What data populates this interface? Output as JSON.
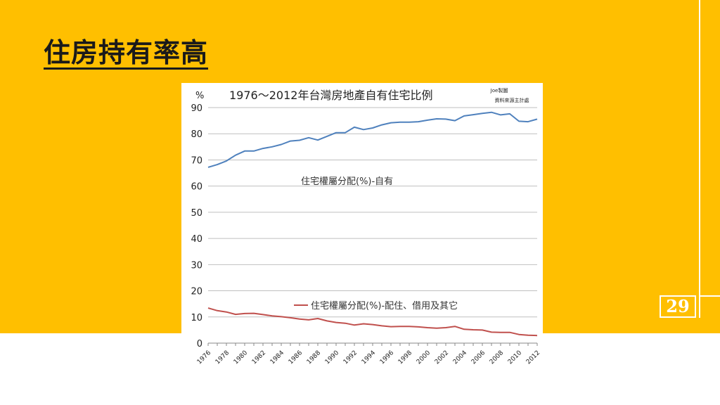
{
  "slide": {
    "title": "住房持有率高",
    "page_number": "29",
    "colors": {
      "background": "#FFBF00",
      "title": "#1a1a1a",
      "rule": "#ffffff"
    }
  },
  "chart_data": {
    "type": "line",
    "title": "1976～2012年台灣房地產自有住宅比例",
    "ylabel": "%",
    "xlabel": "",
    "credit": [
      "Joe製圖",
      "資料來源主計處"
    ],
    "ylim": [
      0,
      90
    ],
    "yticks": [
      0,
      10,
      20,
      30,
      40,
      50,
      60,
      70,
      80,
      90
    ],
    "xticks": [
      "1976",
      "1978",
      "1980",
      "1982",
      "1984",
      "1986",
      "1988",
      "1990",
      "1992",
      "1994",
      "1996",
      "1998",
      "2000",
      "2002",
      "2004",
      "2006",
      "2008",
      "2010",
      "2012"
    ],
    "grid": true,
    "x": [
      1976,
      1977,
      1978,
      1979,
      1980,
      1981,
      1982,
      1983,
      1984,
      1985,
      1986,
      1987,
      1988,
      1989,
      1990,
      1991,
      1992,
      1993,
      1994,
      1995,
      1996,
      1997,
      1998,
      1999,
      2000,
      2001,
      2002,
      2003,
      2004,
      2005,
      2006,
      2007,
      2008,
      2009,
      2010,
      2011,
      2012
    ],
    "series": [
      {
        "name": "住宅權屬分配(%)-自有",
        "color": "#4F81BD",
        "values": [
          67.2,
          68.2,
          69.6,
          71.8,
          73.4,
          73.4,
          74.4,
          75.0,
          75.9,
          77.2,
          77.5,
          78.5,
          77.6,
          79.0,
          80.4,
          80.4,
          82.5,
          81.6,
          82.2,
          83.4,
          84.2,
          84.4,
          84.4,
          84.6,
          85.2,
          85.7,
          85.6,
          85.0,
          86.8,
          87.3,
          87.8,
          88.2,
          87.2,
          87.6,
          84.8,
          84.6,
          85.6
        ]
      },
      {
        "name": "住宅權屬分配(%)-配住、借用及其它",
        "color": "#C0504D",
        "values": [
          13.4,
          12.4,
          11.9,
          11.0,
          11.3,
          11.4,
          10.9,
          10.4,
          10.1,
          9.7,
          9.2,
          8.9,
          9.4,
          8.5,
          7.9,
          7.6,
          6.9,
          7.4,
          7.1,
          6.6,
          6.3,
          6.4,
          6.4,
          6.2,
          5.9,
          5.7,
          5.9,
          6.4,
          5.3,
          5.1,
          5.0,
          4.2,
          4.1,
          4.1,
          3.3,
          3.0,
          2.9
        ]
      }
    ]
  }
}
